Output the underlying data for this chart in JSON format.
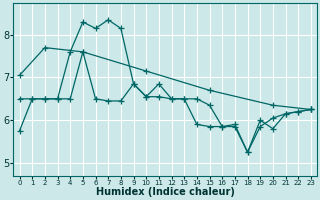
{
  "xlabel": "Humidex (Indice chaleur)",
  "bg_color": "#cce8e8",
  "grid_color": "#ffffff",
  "line_color": "#006666",
  "xlim": [
    -0.5,
    23.5
  ],
  "ylim": [
    4.7,
    8.75
  ],
  "xtick_labels": [
    "0",
    "1",
    "2",
    "3",
    "4",
    "5",
    "6",
    "7",
    "8",
    "9",
    "10",
    "11",
    "12",
    "13",
    "14",
    "15",
    "16",
    "17",
    "18",
    "19",
    "20",
    "21",
    "22",
    "23"
  ],
  "yticks": [
    5,
    6,
    7,
    8
  ],
  "line1_x": [
    0,
    1,
    2,
    3,
    4,
    5,
    6,
    7,
    8,
    9,
    10,
    11,
    12,
    13,
    14,
    15,
    16,
    17,
    18,
    19,
    20,
    21,
    22,
    23
  ],
  "line1_y": [
    5.75,
    6.5,
    6.5,
    6.5,
    7.6,
    8.3,
    8.15,
    8.35,
    8.15,
    6.85,
    6.55,
    6.85,
    6.5,
    6.5,
    6.5,
    6.35,
    5.85,
    5.9,
    5.25,
    6.0,
    5.8,
    6.15,
    6.2,
    6.25
  ],
  "line2_x": [
    0,
    1,
    2,
    3,
    4,
    5,
    6,
    7,
    8,
    9,
    10,
    11,
    12,
    13,
    14,
    15,
    16,
    17,
    18,
    19,
    20,
    21,
    22,
    23
  ],
  "line2_y": [
    6.5,
    6.5,
    6.5,
    6.5,
    6.5,
    7.6,
    6.5,
    6.45,
    6.45,
    6.85,
    6.55,
    6.55,
    6.5,
    6.5,
    5.9,
    5.85,
    5.85,
    5.85,
    5.25,
    5.85,
    6.05,
    6.15,
    6.2,
    6.25
  ],
  "line3_x": [
    0,
    2,
    5,
    10,
    15,
    20,
    23
  ],
  "line3_y": [
    7.05,
    7.7,
    7.6,
    7.15,
    6.7,
    6.35,
    6.25
  ]
}
